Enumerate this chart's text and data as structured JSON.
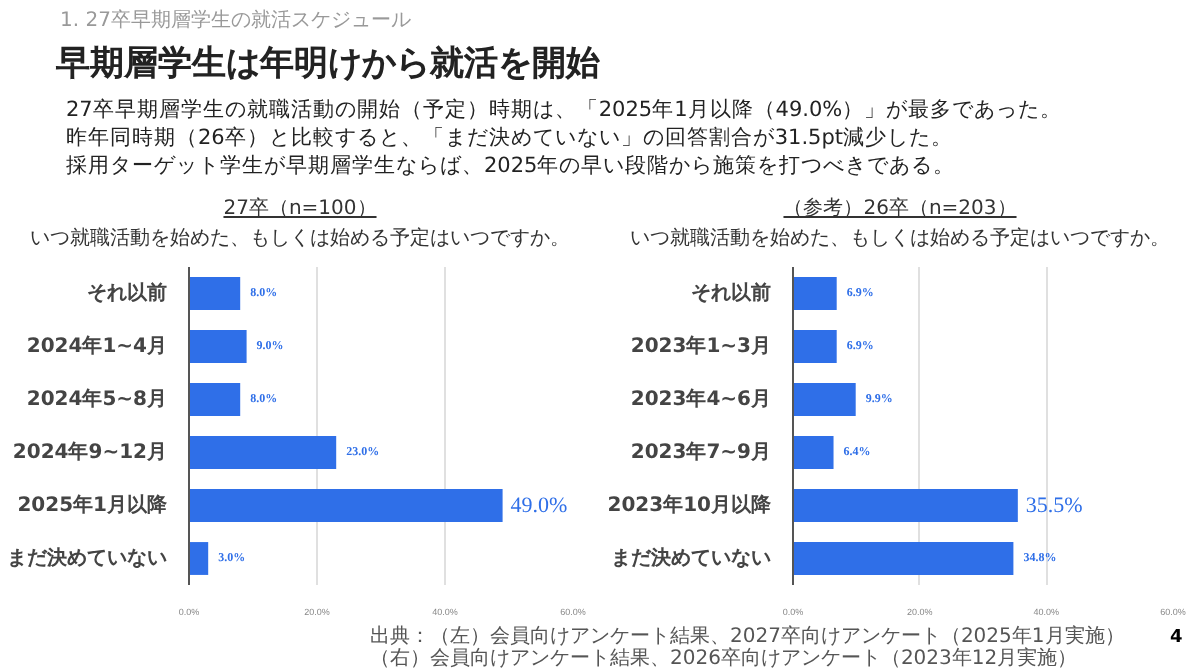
{
  "chart_data": [
    {
      "type": "bar",
      "orientation": "horizontal",
      "title": "27卒（n=100）",
      "subtitle": "いつ就職活動を始めた、もしくは始める予定はいつですか。",
      "categories": [
        "それ以前",
        "2024年1~4月",
        "2024年5~8月",
        "2024年9~12月",
        "2025年1月以降",
        "まだ決めていない"
      ],
      "values": [
        8.0,
        9.0,
        8.0,
        23.0,
        49.0,
        3.0
      ],
      "value_labels": [
        "8.0%",
        "9.0%",
        "8.0%",
        "23.0%",
        "49.0%",
        "3.0%"
      ],
      "color": "#2f6fe8",
      "xlim": [
        0,
        60
      ],
      "xticks": [
        {
          "value": 0,
          "label": "0.0%"
        },
        {
          "value": 20,
          "label": "20.0%"
        },
        {
          "value": 40,
          "label": "40.0%"
        },
        {
          "value": 60,
          "label": "60.0%"
        }
      ],
      "grid": "x",
      "annotations": [
        "1. 27卒早期層学生の就活スケジュール",
        "早期層学生は年明けから就活を開始",
        "27卒早期層学生の就職活動の開始（予定）時期は、「2025年1月以降（49.0%）」が最多であった。",
        "昨年同時期（26卒）と比較すると、「まだ決めていない」の回答割合が31.5pt減少した。",
        "採用ターゲット学生が早期層学生ならば、2025年の早い段階から施策を打つべきである。"
      ]
    },
    {
      "type": "bar",
      "orientation": "horizontal",
      "title": "（参考）26卒（n=203）",
      "subtitle": "いつ就職活動を始めた、もしくは始める予定はいつですか。",
      "categories": [
        "それ以前",
        "2023年1~3月",
        "2023年4~6月",
        "2023年7~9月",
        "2023年10月以降",
        "まだ決めていない"
      ],
      "values": [
        6.9,
        6.9,
        9.9,
        6.4,
        35.5,
        34.8
      ],
      "value_labels": [
        "6.9%",
        "6.9%",
        "9.9%",
        "6.4%",
        "35.5%",
        "34.8%"
      ],
      "color": "#2f6fe8",
      "xlim": [
        0,
        60
      ],
      "xticks": [
        {
          "value": 0,
          "label": "0.0%"
        },
        {
          "value": 20,
          "label": "20.0%"
        },
        {
          "value": 40,
          "label": "40.0%"
        },
        {
          "value": 60,
          "label": "60.0%"
        }
      ],
      "grid": "x",
      "annotations": [
        "出典：（左）会員向けアンケート結果、2027卒向けアンケート（2025年1月実施）",
        "（右）会員向けアンケート結果、2026卒向けアンケート（2023年12月実施）",
        "4"
      ]
    }
  ]
}
